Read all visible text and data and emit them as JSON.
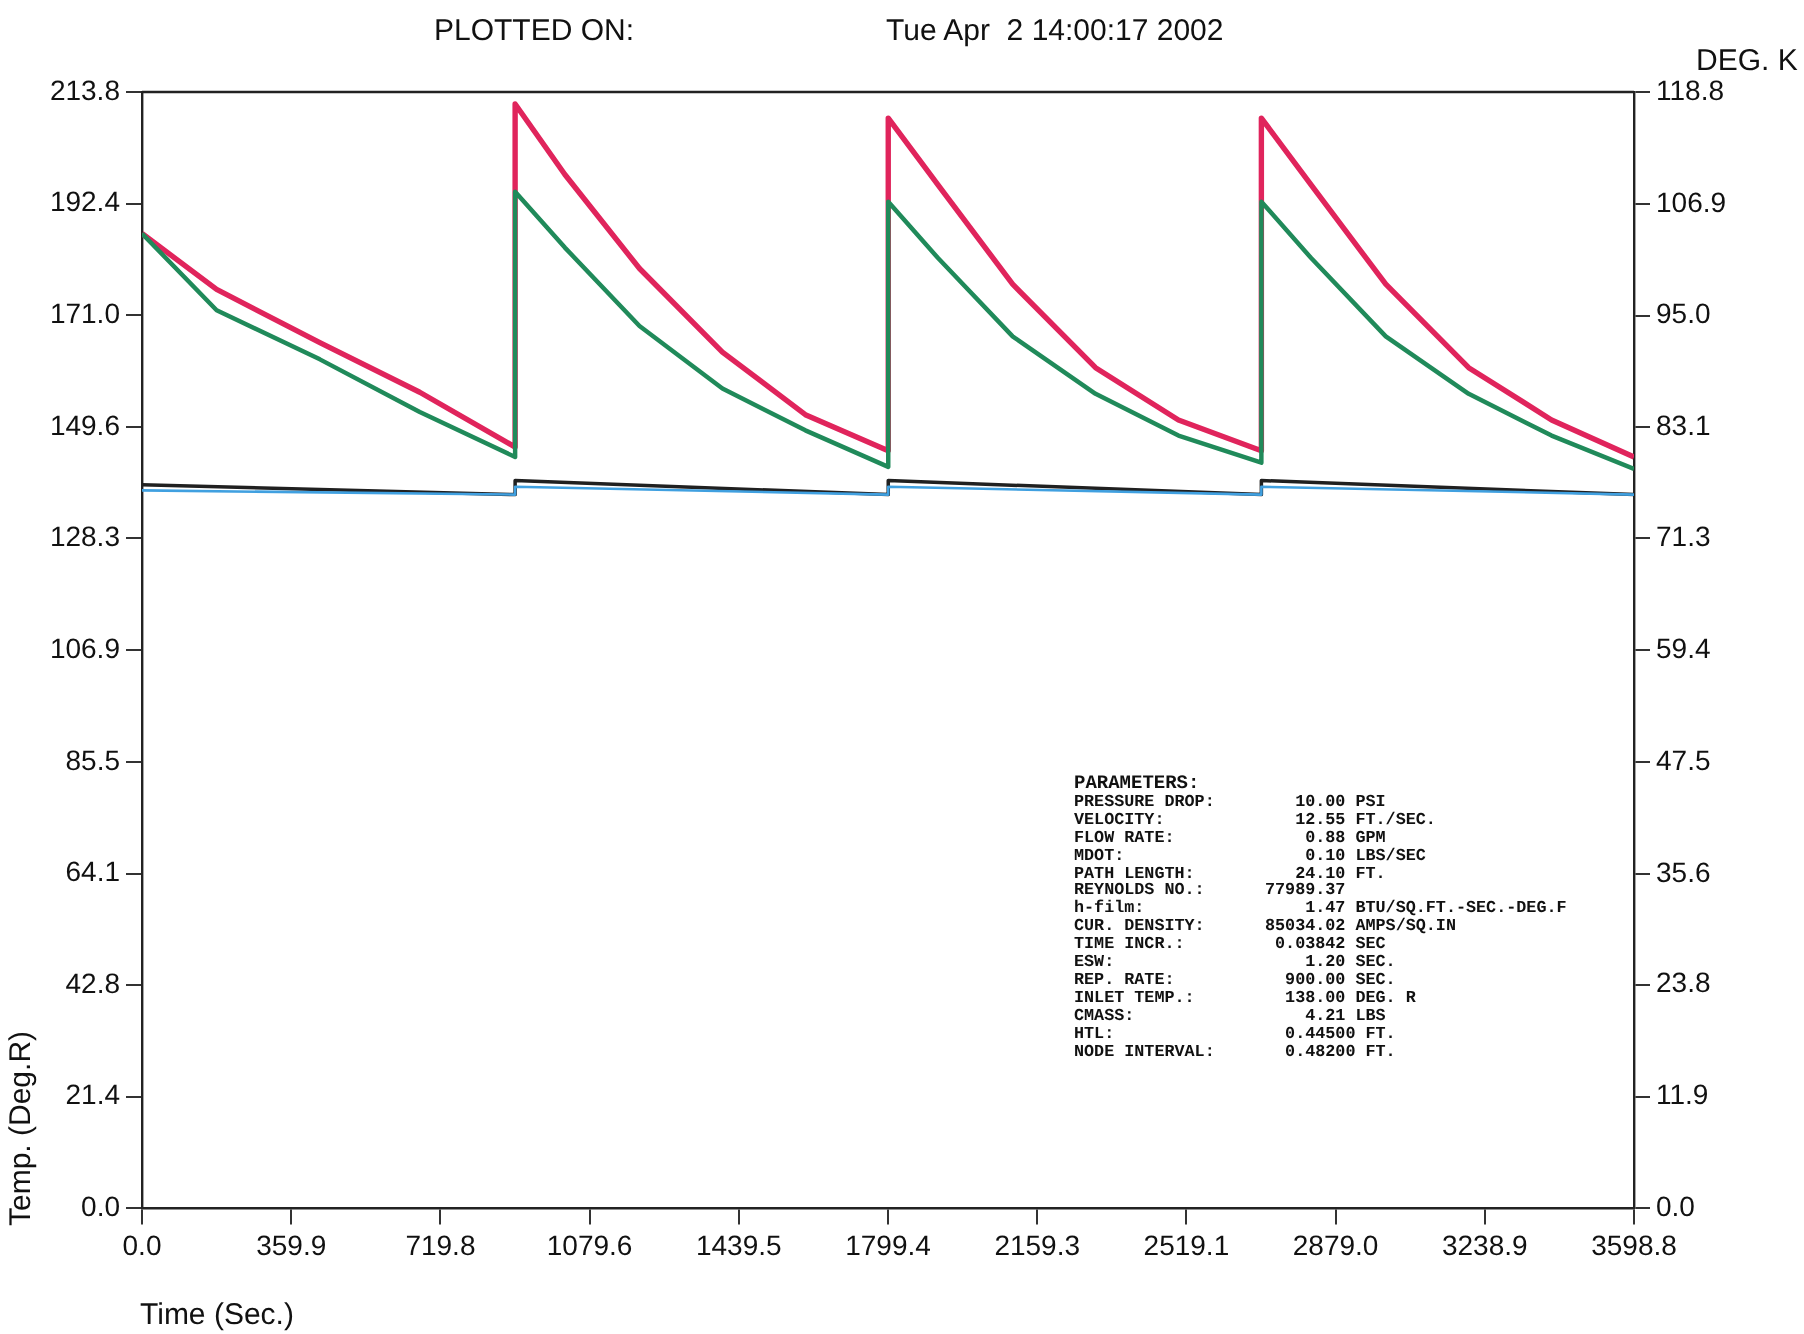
{
  "chart_data": {
    "type": "line",
    "title": "PLOTTED ON:",
    "subtitle": "Tue Apr  2 14:00:17 2002",
    "xlabel": "Time (Sec.)",
    "ylabel": "Temp. (Deg.R)",
    "y2label": "DEG. K",
    "xlim": [
      0,
      3598.8
    ],
    "xticks": [
      {
        "value": 0,
        "label": "0.0"
      },
      359.9,
      719.8,
      1079.6,
      1439.5,
      1799.4,
      2159.3,
      2519.1,
      {
        "value": 2879,
        "label": "2879.0"
      },
      3238.9,
      3598.8
    ],
    "ylim": [
      0,
      213.8
    ],
    "yticks": [
      {
        "value": 0,
        "label": "0.0"
      },
      21.4,
      42.8,
      64.1,
      85.5,
      106.9,
      128.3,
      149.6,
      {
        "value": 171,
        "label": "171.0"
      },
      192.4,
      213.8
    ],
    "y2lim": [
      0,
      118.8
    ],
    "y2ticks": [
      {
        "value": 0,
        "label": "0.0"
      },
      11.9,
      23.8,
      35.6,
      47.5,
      59.4,
      71.3,
      83.1,
      {
        "value": 95,
        "label": "95.0"
      },
      106.9,
      118.8
    ],
    "grid": false,
    "legend": false,
    "marker": "none",
    "line_style": "solid",
    "series": [
      {
        "color": "#e0245c",
        "x": [
          0,
          180,
          429,
          670,
          900,
          900,
          1020,
          1200,
          1400,
          1600,
          1800,
          1800,
          1920,
          2100,
          2300,
          2500,
          2700,
          2700,
          2820,
          3000,
          3200,
          3400,
          3598.8
        ],
        "values": [
          186.7,
          176,
          165.8,
          156.3,
          145.8,
          211.5,
          198,
          180,
          164,
          152,
          145.1,
          208.8,
          196,
          177,
          161,
          151,
          145.1,
          208.8,
          196,
          177,
          161,
          151,
          143.9
        ]
      },
      {
        "color": "#208a5a",
        "x": [
          0,
          180,
          429,
          670,
          900,
          900,
          1020,
          1200,
          1400,
          1600,
          1800,
          1800,
          1920,
          2100,
          2300,
          2500,
          2700,
          2700,
          2820,
          3000,
          3200,
          3400,
          3598.8
        ],
        "values": [
          186.7,
          172,
          162.6,
          152.5,
          143.9,
          194.7,
          184,
          169,
          157,
          149,
          142,
          192.8,
          182,
          167,
          156,
          148,
          142.8,
          192.8,
          182,
          167,
          156,
          148,
          141.6
        ]
      },
      {
        "color": "#202020",
        "x": [
          0,
          900,
          900,
          1800,
          1800,
          2700,
          2700,
          3598.8
        ],
        "values": [
          138.6,
          136.7,
          139.4,
          136.7,
          139.4,
          136.7,
          139.4,
          136.7
        ]
      },
      {
        "color": "#40a0e0",
        "x": [
          0,
          900,
          900,
          1800,
          1800,
          2700,
          2700,
          3598.8
        ],
        "values": [
          137.5,
          136.7,
          138.2,
          136.7,
          138.2,
          136.7,
          138.2,
          136.7
        ]
      }
    ],
    "annotations": [
      "PARAMETERS:",
      "PRESSURE DROP:        10.00 PSI",
      "VELOCITY:             12.55 FT./SEC.",
      "FLOW RATE:             0.88 GPM",
      "MDOT:                  0.10 LBS/SEC",
      "PATH LENGTH:          24.10 FT.",
      "REYNOLDS NO.:      77989.37",
      "h-film:                1.47 BTU/SQ.FT.-SEC.-DEG.F",
      "CUR. DENSITY:      85034.02 AMPS/SQ.IN",
      "TIME INCR.:         0.03842 SEC",
      "ESW:                   1.20 SEC.",
      "REP. RATE:           900.00 SEC.",
      "INLET TEMP.:         138.00 DEG. R",
      "CMASS:                 4.21 LBS",
      "HTL:                 0.44500 FT.",
      "NODE INTERVAL:       0.48200 FT."
    ]
  }
}
